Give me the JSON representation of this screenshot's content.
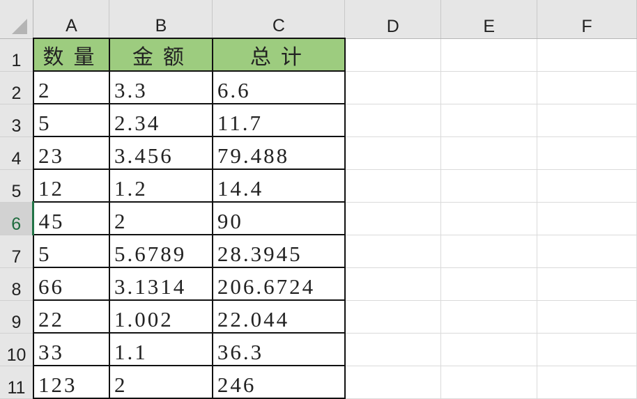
{
  "columns": [
    "A",
    "B",
    "C",
    "D",
    "E",
    "F"
  ],
  "rows": [
    "1",
    "2",
    "3",
    "4",
    "5",
    "6",
    "7",
    "8",
    "9",
    "10",
    "11"
  ],
  "active_row": "6",
  "active_cell": "A6",
  "header_fill": "#9dcc7f",
  "table": {
    "headers": [
      "数量",
      "金额",
      "总计"
    ],
    "data": [
      [
        "2",
        "3.3",
        "6.6"
      ],
      [
        "5",
        "2.34",
        "11.7"
      ],
      [
        "23",
        "3.456",
        "79.488"
      ],
      [
        "12",
        "1.2",
        "14.4"
      ],
      [
        "45",
        "2",
        "90"
      ],
      [
        "5",
        "5.6789",
        "28.3945"
      ],
      [
        "66",
        "3.1314",
        "206.6724"
      ],
      [
        "22",
        "1.002",
        "22.044"
      ],
      [
        "33",
        "1.1",
        "36.3"
      ],
      [
        "123",
        "2",
        "246"
      ]
    ]
  }
}
